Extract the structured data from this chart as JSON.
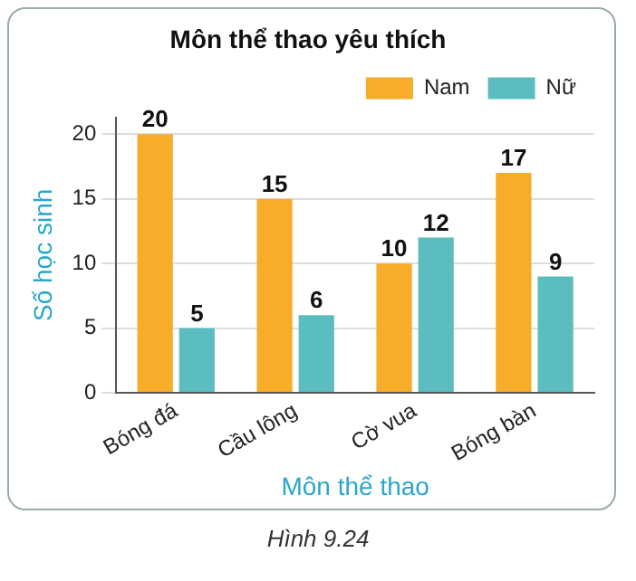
{
  "chart_data": {
    "type": "bar",
    "title": "Môn thể thao yêu thích",
    "categories": [
      "Bóng đá",
      "Cầu lông",
      "Cờ vua",
      "Bóng bàn"
    ],
    "series": [
      {
        "name": "Nam",
        "color": "#f7ac2a",
        "values": [
          20,
          15,
          10,
          17
        ]
      },
      {
        "name": "Nữ",
        "color": "#5bbdc0",
        "values": [
          5,
          6,
          12,
          9
        ]
      }
    ],
    "xlabel": "Môn thể thao",
    "ylabel": "Số học sinh",
    "ylim": [
      0,
      21.3
    ],
    "yticks": [
      0,
      5,
      10,
      15,
      20
    ],
    "grid": "y",
    "legend": "top right",
    "data_labels": true,
    "annotations": [
      "Hình 9.24"
    ]
  }
}
